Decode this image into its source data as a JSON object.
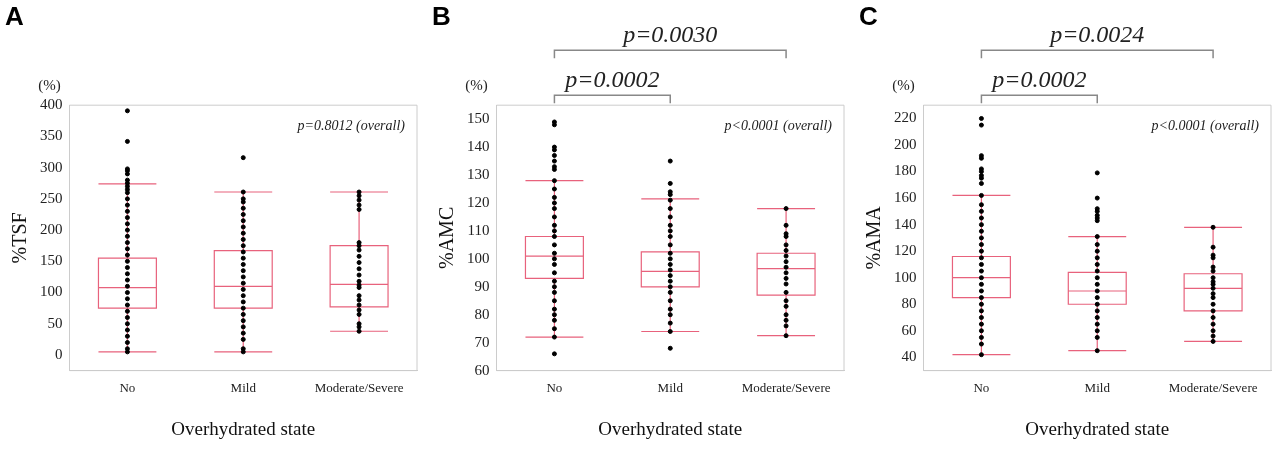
{
  "chart_data": [
    {
      "type": "box",
      "title": "A",
      "xlabel": "Overhydrated state",
      "ylabel": "%TSF",
      "categories": [
        "No",
        "Mild",
        "Moderate/Severe"
      ],
      "ylim": [
        -25,
        400
      ],
      "yticks": [
        0,
        50,
        100,
        150,
        200,
        250,
        300,
        350,
        400
      ],
      "marker": "circle",
      "annotations": [
        "(%)",
        "p=0.8012 (overall)"
      ],
      "series": [
        {
          "type": "box",
          "color": "#e8627c",
          "boxes": [
            {
              "low": 5,
              "q1": 75,
              "median": 108,
              "q3": 155,
              "high": 274
            },
            {
              "low": 5,
              "q1": 75,
              "median": 110,
              "q3": 167,
              "high": 261
            },
            {
              "low": 38,
              "q1": 77,
              "median": 113,
              "q3": 175,
              "high": 261
            }
          ]
        },
        {
          "type": "scatter",
          "color": "#000000",
          "x": [
            "No",
            "No",
            "No",
            "No",
            "No",
            "No",
            "No",
            "No",
            "No",
            "No",
            "No",
            "No",
            "No",
            "No",
            "No",
            "No",
            "No",
            "No",
            "No",
            "No",
            "No",
            "No",
            "No",
            "No",
            "No",
            "No",
            "No",
            "No",
            "No",
            "No",
            "No",
            "No",
            "No",
            "No",
            "No",
            "No",
            "Mild",
            "Mild",
            "Mild",
            "Mild",
            "Mild",
            "Mild",
            "Mild",
            "Mild",
            "Mild",
            "Mild",
            "Mild",
            "Mild",
            "Mild",
            "Mild",
            "Mild",
            "Mild",
            "Mild",
            "Mild",
            "Mild",
            "Mild",
            "Mild",
            "Mild",
            "Mild",
            "Mild",
            "Mild",
            "Mild",
            "Mild",
            "Mild",
            "Moderate/Severe",
            "Moderate/Severe",
            "Moderate/Severe",
            "Moderate/Severe",
            "Moderate/Severe",
            "Moderate/Severe",
            "Moderate/Severe",
            "Moderate/Severe",
            "Moderate/Severe",
            "Moderate/Severe",
            "Moderate/Severe",
            "Moderate/Severe",
            "Moderate/Severe",
            "Moderate/Severe",
            "Moderate/Severe",
            "Moderate/Severe",
            "Moderate/Severe",
            "Moderate/Severe",
            "Moderate/Severe",
            "Moderate/Severe",
            "Moderate/Severe",
            "Moderate/Severe",
            "Moderate/Severe"
          ],
          "values": [
            391,
            342,
            298,
            295,
            290,
            280,
            275,
            270,
            265,
            260,
            250,
            240,
            230,
            220,
            210,
            200,
            190,
            180,
            170,
            160,
            150,
            140,
            130,
            120,
            110,
            100,
            90,
            80,
            70,
            60,
            50,
            40,
            30,
            20,
            10,
            5,
            316,
            261,
            250,
            245,
            235,
            225,
            215,
            205,
            195,
            185,
            175,
            165,
            155,
            145,
            135,
            125,
            115,
            105,
            95,
            85,
            75,
            65,
            55,
            45,
            35,
            25,
            10,
            5,
            261,
            255,
            248,
            240,
            233,
            180,
            175,
            168,
            158,
            148,
            138,
            128,
            118,
            112,
            108,
            95,
            88,
            80,
            72,
            65,
            50,
            45,
            38
          ]
        }
      ]
    },
    {
      "type": "box",
      "title": "B",
      "xlabel": "Overhydrated state",
      "ylabel": "%AMC",
      "categories": [
        "No",
        "Mild",
        "Moderate/Severe"
      ],
      "ylim": [
        60,
        155
      ],
      "yticks": [
        60,
        70,
        80,
        90,
        100,
        110,
        120,
        130,
        140,
        150
      ],
      "marker": "circle",
      "annotations": [
        "(%)",
        "p<0.0001 (overall)",
        "p=0.0002",
        "p=0.0030"
      ],
      "series": [
        {
          "type": "box",
          "color": "#e8627c",
          "boxes": [
            {
              "low": 72,
              "q1": 93,
              "median": 101,
              "q3": 108,
              "high": 128
            },
            {
              "low": 74,
              "q1": 90,
              "median": 95.5,
              "q3": 102.5,
              "high": 121.5
            },
            {
              "low": 72.5,
              "q1": 87,
              "median": 96.5,
              "q3": 102,
              "high": 118
            }
          ]
        },
        {
          "type": "scatter",
          "color": "#000000",
          "x": [
            "No",
            "No",
            "No",
            "No",
            "No",
            "No",
            "No",
            "No",
            "No",
            "No",
            "No",
            "No",
            "No",
            "No",
            "No",
            "No",
            "No",
            "No",
            "No",
            "No",
            "No",
            "No",
            "No",
            "No",
            "No",
            "No",
            "No",
            "No",
            "No",
            "No",
            "No",
            "No",
            "Mild",
            "Mild",
            "Mild",
            "Mild",
            "Mild",
            "Mild",
            "Mild",
            "Mild",
            "Mild",
            "Mild",
            "Mild",
            "Mild",
            "Mild",
            "Mild",
            "Mild",
            "Mild",
            "Mild",
            "Mild",
            "Mild",
            "Mild",
            "Mild",
            "Mild",
            "Mild",
            "Mild",
            "Mild",
            "Moderate/Severe",
            "Moderate/Severe",
            "Moderate/Severe",
            "Moderate/Severe",
            "Moderate/Severe",
            "Moderate/Severe",
            "Moderate/Severe",
            "Moderate/Severe",
            "Moderate/Severe",
            "Moderate/Severe",
            "Moderate/Severe",
            "Moderate/Severe",
            "Moderate/Severe",
            "Moderate/Severe",
            "Moderate/Severe",
            "Moderate/Severe",
            "Moderate/Severe",
            "Moderate/Severe",
            "Moderate/Severe"
          ],
          "values": [
            149,
            148,
            140,
            139,
            137,
            135,
            133,
            132,
            128,
            125,
            122,
            120,
            118,
            115,
            112,
            110,
            108,
            105,
            102,
            100,
            98,
            95,
            92,
            90,
            88,
            85,
            82,
            80,
            78,
            75,
            72,
            66,
            135,
            127,
            124,
            123,
            121,
            118,
            115,
            112,
            110,
            108,
            105,
            102,
            100,
            98,
            96,
            94,
            92,
            90,
            88,
            85,
            82,
            80,
            77,
            74,
            68,
            118,
            112,
            109,
            108,
            105,
            103,
            101,
            99,
            97,
            95,
            93,
            91,
            88,
            85,
            83,
            80,
            78,
            76,
            72.5
          ]
        }
      ]
    },
    {
      "type": "box",
      "title": "C",
      "xlabel": "Overhydrated state",
      "ylabel": "%AMA",
      "categories": [
        "No",
        "Mild",
        "Moderate/Severe"
      ],
      "ylim": [
        30,
        230
      ],
      "yticks": [
        40,
        60,
        80,
        100,
        120,
        140,
        160,
        180,
        200,
        220
      ],
      "marker": "circle",
      "annotations": [
        "(%)",
        "p<0.0001 (overall)",
        "p=0.0002",
        "p=0.0024"
      ],
      "series": [
        {
          "type": "box",
          "color": "#e8627c",
          "boxes": [
            {
              "low": 42,
              "q1": 85,
              "median": 100,
              "q3": 116,
              "high": 162
            },
            {
              "low": 45,
              "q1": 80,
              "median": 90,
              "q3": 104,
              "high": 131
            },
            {
              "low": 52,
              "q1": 75,
              "median": 92,
              "q3": 103,
              "high": 138
            }
          ]
        },
        {
          "type": "scatter",
          "color": "#000000",
          "x": [
            "No",
            "No",
            "No",
            "No",
            "No",
            "No",
            "No",
            "No",
            "No",
            "No",
            "No",
            "No",
            "No",
            "No",
            "No",
            "No",
            "No",
            "No",
            "No",
            "No",
            "No",
            "No",
            "No",
            "No",
            "No",
            "No",
            "No",
            "No",
            "No",
            "No",
            "No",
            "No",
            "No",
            "Mild",
            "Mild",
            "Mild",
            "Mild",
            "Mild",
            "Mild",
            "Mild",
            "Mild",
            "Mild",
            "Mild",
            "Mild",
            "Mild",
            "Mild",
            "Mild",
            "Mild",
            "Mild",
            "Mild",
            "Mild",
            "Mild",
            "Mild",
            "Mild",
            "Mild",
            "Mild",
            "Mild",
            "Moderate/Severe",
            "Moderate/Severe",
            "Moderate/Severe",
            "Moderate/Severe",
            "Moderate/Severe",
            "Moderate/Severe",
            "Moderate/Severe",
            "Moderate/Severe",
            "Moderate/Severe",
            "Moderate/Severe",
            "Moderate/Severe",
            "Moderate/Severe",
            "Moderate/Severe",
            "Moderate/Severe",
            "Moderate/Severe",
            "Moderate/Severe",
            "Moderate/Severe",
            "Moderate/Severe",
            "Moderate/Severe"
          ],
          "values": [
            220,
            215,
            192,
            190,
            182,
            180,
            177,
            175,
            171,
            162,
            155,
            150,
            145,
            140,
            135,
            130,
            125,
            120,
            115,
            110,
            105,
            100,
            95,
            90,
            85,
            80,
            75,
            70,
            65,
            60,
            55,
            50,
            42,
            179,
            160,
            152,
            150,
            147,
            145,
            143,
            131,
            125,
            120,
            115,
            110,
            105,
            100,
            95,
            90,
            85,
            80,
            75,
            70,
            65,
            60,
            55,
            45,
            138,
            123,
            117,
            115,
            108,
            105,
            100,
            97,
            95,
            92,
            88,
            85,
            80,
            75,
            70,
            65,
            60,
            56,
            52
          ]
        }
      ]
    }
  ]
}
